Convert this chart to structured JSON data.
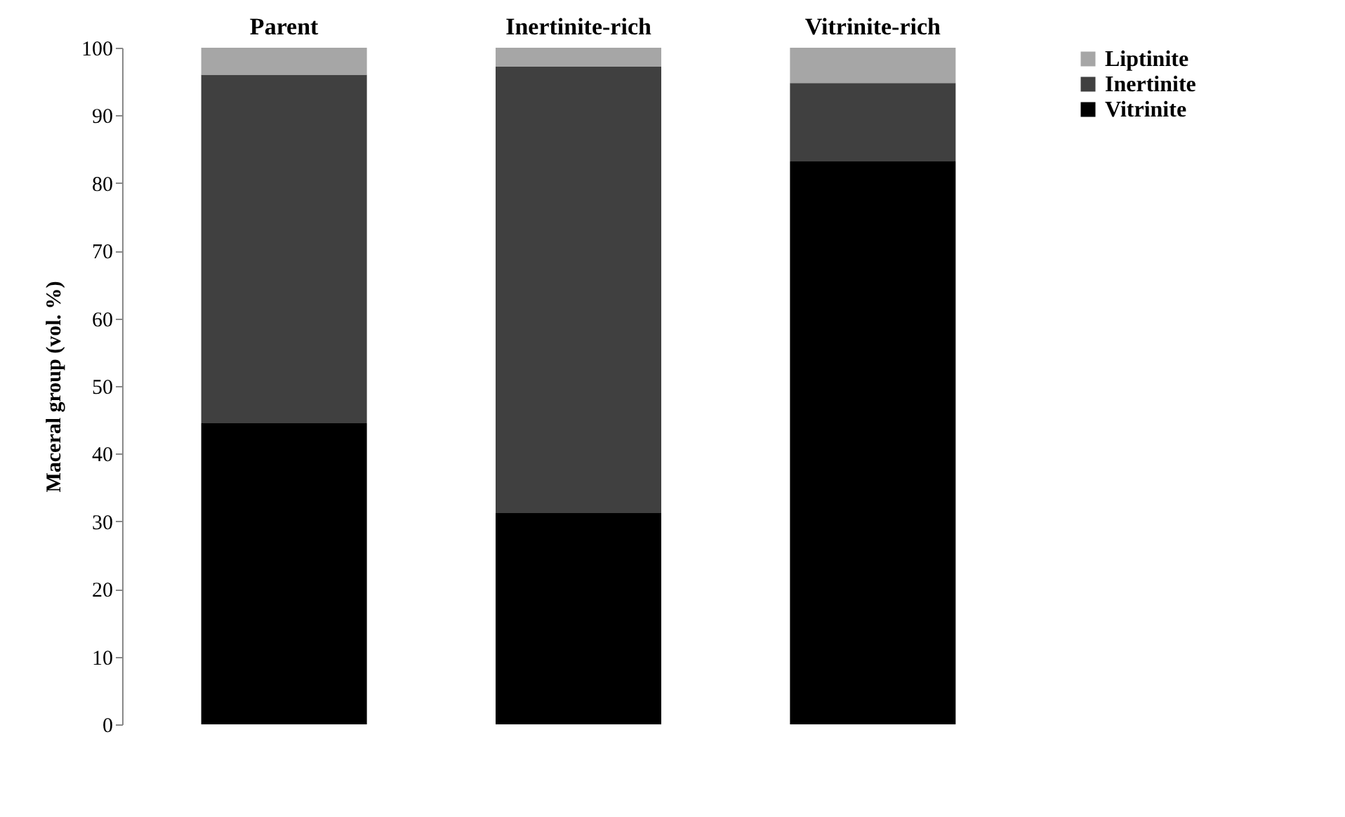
{
  "chart_data": {
    "type": "bar",
    "stacked": true,
    "categories": [
      "Parent",
      "Inertinite-rich",
      "Vitrinite-rich"
    ],
    "ylabel": "Maceral group (vol. %)",
    "series": [
      {
        "name": "Vitrinite",
        "color": "#000000",
        "values": [
          44.5,
          31.3,
          83.2
        ]
      },
      {
        "name": "Inertinite",
        "color": "#404040",
        "values": [
          51.5,
          65.9,
          11.6
        ]
      },
      {
        "name": "Liptinite",
        "color": "#a6a6a6",
        "values": [
          4.0,
          2.8,
          5.2
        ]
      }
    ],
    "ylim": [
      0,
      100
    ],
    "yticks": [
      0,
      10,
      20,
      30,
      40,
      50,
      60,
      70,
      80,
      90,
      100
    ],
    "grid": false,
    "legend": "right"
  }
}
